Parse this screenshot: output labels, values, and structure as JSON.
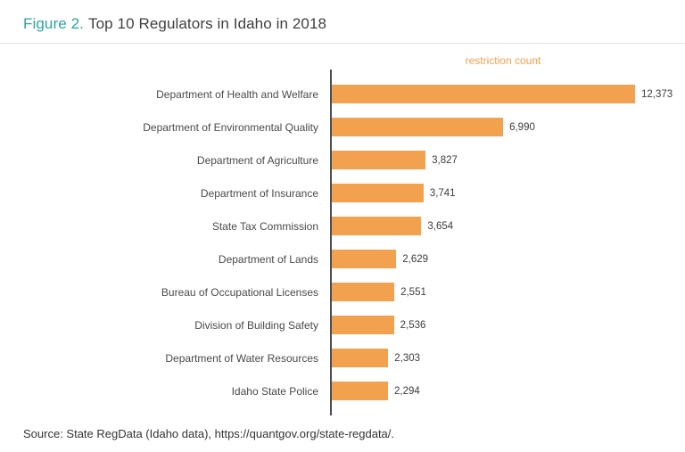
{
  "header": {
    "figure_label": "Figure 2.",
    "title": "Top 10 Regulators in Idaho in 2018"
  },
  "chart_data": {
    "type": "bar",
    "orientation": "horizontal",
    "title": "Figure 2. Top 10 Regulators in Idaho in 2018",
    "value_axis_label": "restriction count",
    "categories": [
      "Department of Health and Welfare",
      "Department of Environmental Quality",
      "Department of Agriculture",
      "Department of Insurance",
      "State Tax Commission",
      "Department of Lands",
      "Bureau of Occupational Licenses",
      "Division of Building Safety",
      "Department of Water Resources",
      "Idaho State Police"
    ],
    "values": [
      12373,
      6990,
      3827,
      3741,
      3654,
      2629,
      2551,
      2536,
      2303,
      2294
    ],
    "value_labels": [
      "12,373",
      "6,990",
      "3,827",
      "3,741",
      "3,654",
      "2,629",
      "2,551",
      "2,536",
      "2,303",
      "2,294"
    ],
    "xlim": [
      0,
      12373
    ],
    "grid": false,
    "legend": "none",
    "bar_color": "#f2a14f",
    "axis_label_color": "#f2a14f"
  },
  "footer": {
    "source": "Source: State RegData (Idaho data), https://quantgov.org/state-regdata/."
  },
  "colors": {
    "accent_teal": "#2aa5a3",
    "bar_orange": "#f2a14f",
    "text": "#3d3d3d"
  }
}
